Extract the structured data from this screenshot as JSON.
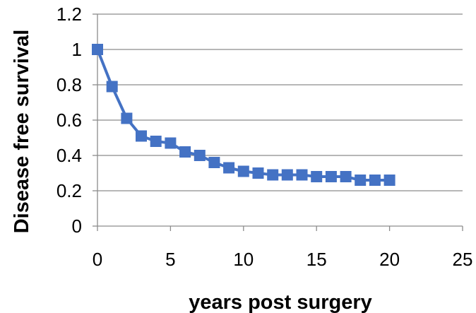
{
  "chart_data": {
    "type": "line",
    "title": "",
    "xlabel": "years post surgery",
    "ylabel": "Disease free survival",
    "xlim": [
      0,
      25
    ],
    "ylim": [
      0,
      1.2
    ],
    "x_ticks": [
      0,
      5,
      10,
      15,
      20,
      25
    ],
    "y_ticks": [
      0,
      0.2,
      0.4,
      0.6,
      0.8,
      1,
      1.2
    ],
    "x_tick_labels": [
      "0",
      "5",
      "10",
      "15",
      "20",
      "25"
    ],
    "y_tick_labels": [
      "0",
      "0.2",
      "0.4",
      "0.6",
      "0.8",
      "1",
      "1.2"
    ],
    "grid": "horizontal",
    "legend": "none",
    "series": [
      {
        "color": "#4472C4",
        "marker": "square",
        "x": [
          0,
          1,
          2,
          3,
          4,
          5,
          6,
          7,
          8,
          9,
          10,
          11,
          12,
          13,
          14,
          15,
          16,
          17,
          18,
          19,
          20
        ],
        "y": [
          1.0,
          0.79,
          0.61,
          0.51,
          0.48,
          0.47,
          0.42,
          0.4,
          0.36,
          0.33,
          0.31,
          0.3,
          0.29,
          0.29,
          0.29,
          0.28,
          0.28,
          0.28,
          0.26,
          0.26,
          0.26
        ]
      }
    ]
  }
}
